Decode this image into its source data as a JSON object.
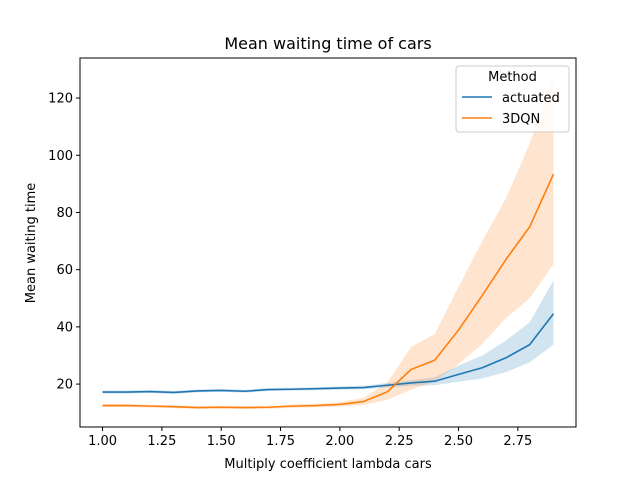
{
  "chart_data": {
    "type": "line",
    "title": "Mean waiting time of cars",
    "xlabel": "Multiply coefficient lambda cars",
    "ylabel": "Mean waiting time",
    "xlim": [
      0.905,
      2.995
    ],
    "ylim": [
      5,
      134
    ],
    "xticks": [
      1.0,
      1.25,
      1.5,
      1.75,
      2.0,
      2.25,
      2.5,
      2.75
    ],
    "xtick_labels": [
      "1.00",
      "1.25",
      "1.50",
      "1.75",
      "2.00",
      "2.25",
      "2.50",
      "2.75"
    ],
    "yticks": [
      20,
      40,
      60,
      80,
      100,
      120
    ],
    "ytick_labels": [
      "20",
      "40",
      "60",
      "80",
      "100",
      "120"
    ],
    "grid": false,
    "legend": {
      "title": "Method",
      "position": "top-right"
    },
    "x": [
      1.0,
      1.1,
      1.2,
      1.3,
      1.4,
      1.5,
      1.6,
      1.7,
      1.8,
      1.9,
      2.0,
      2.1,
      2.2,
      2.3,
      2.4,
      2.5,
      2.6,
      2.7,
      2.8,
      2.9
    ],
    "series": [
      {
        "name": "actuated",
        "color": "#1f77b4",
        "values": [
          17.2,
          17.2,
          17.4,
          17.1,
          17.6,
          17.8,
          17.5,
          18.1,
          18.2,
          18.4,
          18.6,
          18.8,
          19.6,
          20.4,
          21.0,
          23.4,
          25.7,
          29.2,
          33.8,
          44.6
        ],
        "ci_lower": [
          16.7,
          16.7,
          16.9,
          16.6,
          17.1,
          17.3,
          17.0,
          17.6,
          17.7,
          17.9,
          18.0,
          18.2,
          18.8,
          19.4,
          19.6,
          20.8,
          22.0,
          24.2,
          27.6,
          33.8
        ],
        "ci_upper": [
          17.7,
          17.7,
          17.9,
          17.6,
          18.1,
          18.3,
          18.0,
          18.6,
          18.7,
          18.9,
          19.2,
          19.4,
          20.4,
          21.4,
          22.4,
          26.5,
          30.0,
          35.2,
          41.6,
          56.2
        ]
      },
      {
        "name": "3DQN",
        "color": "#ff7f0e",
        "values": [
          12.5,
          12.5,
          12.3,
          12.1,
          11.8,
          11.9,
          11.8,
          11.9,
          12.3,
          12.5,
          12.9,
          13.9,
          17.3,
          25.1,
          28.4,
          38.9,
          51.0,
          63.6,
          75.0,
          93.4
        ],
        "ci_lower": [
          12.0,
          12.0,
          11.8,
          11.6,
          11.3,
          11.4,
          11.3,
          11.4,
          11.7,
          11.9,
          12.2,
          12.7,
          14.5,
          18.0,
          21.0,
          27.0,
          34.0,
          43.0,
          50.0,
          62.0
        ],
        "ci_upper": [
          13.0,
          13.0,
          12.8,
          12.6,
          12.3,
          12.4,
          12.3,
          12.4,
          12.9,
          13.1,
          13.7,
          15.2,
          20.5,
          33.0,
          37.5,
          54.0,
          70.0,
          85.0,
          104.0,
          128.0
        ]
      }
    ]
  }
}
